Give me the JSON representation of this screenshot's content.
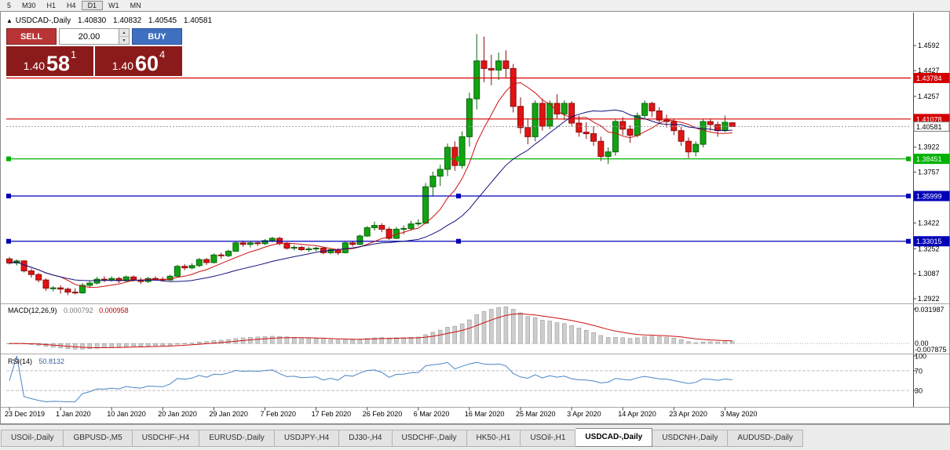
{
  "toolbar": {
    "items": [
      "5",
      "M30",
      "H1",
      "H4",
      "D1",
      "W1",
      "MN"
    ],
    "active": "D1"
  },
  "icons": {
    "collapse": "▲",
    "spinner_up": "▲",
    "spinner_down": "▼"
  },
  "chart": {
    "title": "USDCAD-,Daily",
    "ohlc": {
      "open": "1.40830",
      "high": "1.40832",
      "low": "1.40545",
      "close": "1.40581"
    },
    "price_axis": [
      "1.4592",
      "1.4427",
      "1.4257",
      "1.4092",
      "1.3922",
      "1.3757",
      "1.3592",
      "1.3422",
      "1.3252",
      "1.3087",
      "1.2922"
    ],
    "levels": [
      {
        "price": 1.43784,
        "label": "1.43784",
        "color": "#d40000",
        "handles": false
      },
      {
        "price": 1.41078,
        "label": "1.41078",
        "color": "#d40000",
        "handles": false
      },
      {
        "price": 1.38451,
        "label": "1.38451",
        "color": "#00b200",
        "handles": true
      },
      {
        "price": 1.35999,
        "label": "1.35999",
        "color": "#0000b8",
        "handles": true
      },
      {
        "price": 1.33015,
        "label": "1.33015",
        "color": "#0000b8",
        "handles": true
      }
    ],
    "current_price": {
      "label": "1.40581",
      "value": 1.40581
    },
    "date_labels": [
      "23 Dec 2019",
      "1 Jan 2020",
      "10 Jan 2020",
      "20 Jan 2020",
      "29 Jan 2020",
      "7 Feb 2020",
      "17 Feb 2020",
      "26 Feb 2020",
      "6 Mar 2020",
      "16 Mar 2020",
      "25 Mar 2020",
      "3 Apr 2020",
      "14 Apr 2020",
      "23 Apr 2020",
      "3 May 2020"
    ],
    "date_indices": [
      0,
      7,
      14,
      21,
      28,
      35,
      42,
      49,
      56,
      63,
      70,
      77,
      84,
      91,
      98
    ],
    "candles": [
      [
        1.3185,
        1.3198,
        1.3148,
        1.3158
      ],
      [
        1.3158,
        1.3182,
        1.3142,
        1.3172
      ],
      [
        1.3172,
        1.3176,
        1.3096,
        1.3106
      ],
      [
        1.3106,
        1.3121,
        1.3062,
        1.3082
      ],
      [
        1.3082,
        1.3092,
        1.3031,
        1.3046
      ],
      [
        1.3046,
        1.3056,
        1.2976,
        1.2992
      ],
      [
        1.2992,
        1.3006,
        1.2971,
        1.2994
      ],
      [
        1.2994,
        1.3011,
        1.2956,
        1.2986
      ],
      [
        1.2986,
        1.2996,
        1.2946,
        1.2966
      ],
      [
        1.2966,
        1.2991,
        1.2951,
        1.2961
      ],
      [
        1.2961,
        1.3026,
        1.2956,
        1.3011
      ],
      [
        1.3011,
        1.3041,
        1.2996,
        1.3026
      ],
      [
        1.3026,
        1.3066,
        1.3016,
        1.3051
      ],
      [
        1.3051,
        1.3071,
        1.3031,
        1.3046
      ],
      [
        1.3046,
        1.3071,
        1.3036,
        1.3056
      ],
      [
        1.3056,
        1.3066,
        1.3026,
        1.3041
      ],
      [
        1.3041,
        1.3076,
        1.3031,
        1.3066
      ],
      [
        1.3066,
        1.3076,
        1.3036,
        1.3046
      ],
      [
        1.3046,
        1.3061,
        1.3021,
        1.3036
      ],
      [
        1.3036,
        1.3066,
        1.3026,
        1.3056
      ],
      [
        1.3056,
        1.3071,
        1.3041,
        1.3051
      ],
      [
        1.3051,
        1.3066,
        1.3036,
        1.3046
      ],
      [
        1.3046,
        1.3081,
        1.3041,
        1.3071
      ],
      [
        1.3071,
        1.3146,
        1.3066,
        1.3136
      ],
      [
        1.3136,
        1.3151,
        1.3111,
        1.3126
      ],
      [
        1.3126,
        1.3156,
        1.3116,
        1.3141
      ],
      [
        1.3141,
        1.3191,
        1.3131,
        1.3181
      ],
      [
        1.3181,
        1.3191,
        1.3146,
        1.3161
      ],
      [
        1.3161,
        1.3221,
        1.3156,
        1.3211
      ],
      [
        1.3211,
        1.3226,
        1.3186,
        1.3206
      ],
      [
        1.3206,
        1.3246,
        1.3196,
        1.3236
      ],
      [
        1.3236,
        1.3301,
        1.3231,
        1.3291
      ],
      [
        1.3291,
        1.3306,
        1.3266,
        1.3281
      ],
      [
        1.3281,
        1.3301,
        1.3261,
        1.3291
      ],
      [
        1.3291,
        1.3301,
        1.3271,
        1.3286
      ],
      [
        1.3286,
        1.3316,
        1.3276,
        1.3306
      ],
      [
        1.3306,
        1.3331,
        1.3296,
        1.3321
      ],
      [
        1.3321,
        1.3331,
        1.3276,
        1.3286
      ],
      [
        1.3286,
        1.3296,
        1.3246,
        1.3256
      ],
      [
        1.3256,
        1.3276,
        1.3241,
        1.3261
      ],
      [
        1.3261,
        1.3271,
        1.3236,
        1.3246
      ],
      [
        1.3246,
        1.3266,
        1.3231,
        1.3251
      ],
      [
        1.3251,
        1.3266,
        1.3236,
        1.3256
      ],
      [
        1.3256,
        1.3266,
        1.3216,
        1.3226
      ],
      [
        1.3226,
        1.3256,
        1.3216,
        1.3246
      ],
      [
        1.3246,
        1.3256,
        1.3211,
        1.3226
      ],
      [
        1.3226,
        1.3301,
        1.3221,
        1.3291
      ],
      [
        1.3291,
        1.3306,
        1.3266,
        1.3281
      ],
      [
        1.3281,
        1.3346,
        1.3276,
        1.3336
      ],
      [
        1.3336,
        1.3401,
        1.3331,
        1.3391
      ],
      [
        1.3391,
        1.3431,
        1.3371,
        1.3406
      ],
      [
        1.3406,
        1.3421,
        1.3361,
        1.3381
      ],
      [
        1.3381,
        1.3396,
        1.3311,
        1.3321
      ],
      [
        1.3321,
        1.3396,
        1.3316,
        1.3381
      ],
      [
        1.3381,
        1.3406,
        1.3346,
        1.3386
      ],
      [
        1.3386,
        1.3436,
        1.3371,
        1.3416
      ],
      [
        1.3416,
        1.3446,
        1.3401,
        1.3421
      ],
      [
        1.3421,
        1.3686,
        1.3416,
        1.3661
      ],
      [
        1.3661,
        1.3761,
        1.3601,
        1.3731
      ],
      [
        1.3731,
        1.3806,
        1.3666,
        1.3776
      ],
      [
        1.3776,
        1.3946,
        1.3731,
        1.3921
      ],
      [
        1.3921,
        1.3961,
        1.3766,
        1.3801
      ],
      [
        1.3801,
        1.4026,
        1.3781,
        1.3991
      ],
      [
        1.3991,
        1.4281,
        1.3926,
        1.4241
      ],
      [
        1.4241,
        1.4668,
        1.4171,
        1.4491
      ],
      [
        1.4491,
        1.4651,
        1.4351,
        1.4441
      ],
      [
        1.4441,
        1.4531,
        1.4331,
        1.4431
      ],
      [
        1.4431,
        1.4546,
        1.4366,
        1.4491
      ],
      [
        1.4491,
        1.4561,
        1.4381,
        1.4441
      ],
      [
        1.4441,
        1.4471,
        1.4151,
        1.4191
      ],
      [
        1.4191,
        1.4251,
        1.4011,
        1.4051
      ],
      [
        1.4051,
        1.4111,
        1.3941,
        1.3991
      ],
      [
        1.3991,
        1.4231,
        1.3961,
        1.4211
      ],
      [
        1.4211,
        1.4241,
        1.4031,
        1.4061
      ],
      [
        1.4061,
        1.4231,
        1.4041,
        1.4211
      ],
      [
        1.4211,
        1.4271,
        1.4111,
        1.4141
      ],
      [
        1.4141,
        1.4231,
        1.4101,
        1.4211
      ],
      [
        1.4211,
        1.4226,
        1.4061,
        1.4081
      ],
      [
        1.4081,
        1.4131,
        1.3991,
        1.4021
      ],
      [
        1.4021,
        1.4086,
        1.3976,
        1.4011
      ],
      [
        1.4011,
        1.4061,
        1.3931,
        1.3961
      ],
      [
        1.3961,
        1.3991,
        1.3831,
        1.3861
      ],
      [
        1.3861,
        1.3921,
        1.3811,
        1.3891
      ],
      [
        1.3891,
        1.4106,
        1.3866,
        1.4091
      ],
      [
        1.4091,
        1.4121,
        1.4001,
        1.4041
      ],
      [
        1.4041,
        1.4066,
        1.3951,
        1.4001
      ],
      [
        1.4001,
        1.4151,
        1.3986,
        1.4131
      ],
      [
        1.4131,
        1.4231,
        1.4106,
        1.4211
      ],
      [
        1.4211,
        1.4221,
        1.4121,
        1.4161
      ],
      [
        1.4161,
        1.4186,
        1.4081,
        1.4101
      ],
      [
        1.4101,
        1.4136,
        1.4051,
        1.4091
      ],
      [
        1.4091,
        1.4106,
        1.4001,
        1.4031
      ],
      [
        1.4031,
        1.4056,
        1.3931,
        1.3961
      ],
      [
        1.3961,
        1.3986,
        1.3851,
        1.3891
      ],
      [
        1.3891,
        1.3961,
        1.3861,
        1.3941
      ],
      [
        1.3941,
        1.4106,
        1.3921,
        1.4091
      ],
      [
        1.4091,
        1.4111,
        1.4031,
        1.4071
      ],
      [
        1.4071,
        1.4091,
        1.3991,
        1.4031
      ],
      [
        1.4031,
        1.4131,
        1.4021,
        1.4086
      ],
      [
        1.4083,
        1.40832,
        1.40545,
        1.40581
      ]
    ]
  },
  "macd": {
    "label": "MACD(12,26,9)",
    "value_main": "0.000792",
    "value_signal": "0.000958",
    "axis": [
      "0.031987",
      "0.00",
      "-0.007875"
    ]
  },
  "rsi": {
    "label": "RSI(14)",
    "value": "50.8132",
    "axis": [
      "100",
      "70",
      "30"
    ]
  },
  "trade": {
    "sell_label": "SELL",
    "buy_label": "BUY",
    "volume": "20.00",
    "sell_price": {
      "big": "1.40",
      "pips": "58",
      "sup": "1"
    },
    "buy_price": {
      "big": "1.40",
      "pips": "60",
      "sup": "4"
    }
  },
  "tabs": {
    "items": [
      "USOil-,Daily",
      "GBPUSD-,M5",
      "USDCHF-,H4",
      "EURUSD-,Daily",
      "USDJPY-,H4",
      "DJ30-,H4",
      "USDCHF-,Daily",
      "HK50-,H1",
      "USOil-,H1",
      "USDCAD-,Daily",
      "USDCNH-,Daily",
      "AUDUSD-,Daily"
    ],
    "active_index": 9
  },
  "colors": {
    "up": "#12a312",
    "up_dark": "#0b650b",
    "down": "#e01414",
    "down_dark": "#8d0d0d",
    "ma_fast": "#cc1111",
    "ma_slow": "#12127f",
    "macd_hist": "#cdcdcd",
    "macd_hist_border": "#8f8f8f",
    "macd_signal": "#cc1111",
    "rsi_line": "#4a86c8",
    "sell_button": "#b93535",
    "buy_button": "#3f6fbf",
    "quote_bg": "#8b1b1b"
  }
}
